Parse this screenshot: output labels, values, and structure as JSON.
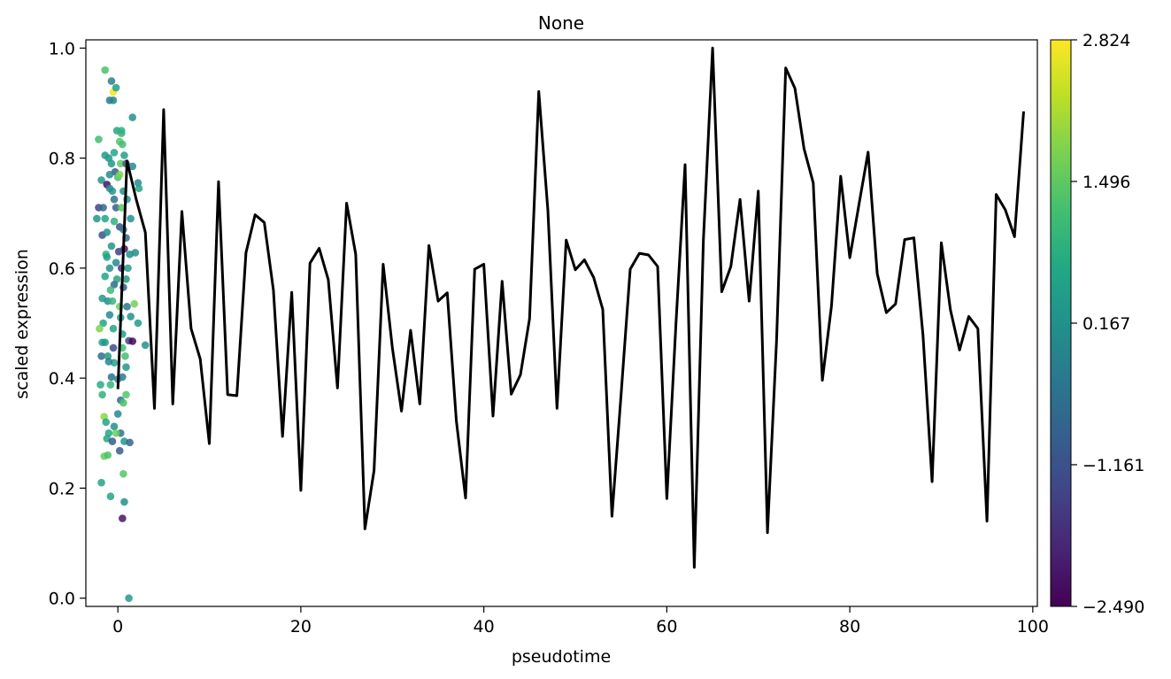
{
  "chart_data": {
    "type": "scatter",
    "title": "None",
    "xlabel": "pseudotime",
    "ylabel": "scaled expression",
    "xlim": [
      -3.5,
      100.5
    ],
    "ylim": [
      -0.015,
      1.015
    ],
    "xticks": [
      0,
      20,
      40,
      60,
      80,
      100
    ],
    "yticks": [
      0.0,
      0.2,
      0.4,
      0.6,
      0.8,
      1.0
    ],
    "xtick_labels": [
      "0",
      "20",
      "40",
      "60",
      "80",
      "100"
    ],
    "ytick_labels": [
      "0.0",
      "0.2",
      "0.4",
      "0.6",
      "0.8",
      "1.0"
    ],
    "grid": false,
    "colormap": "viridis",
    "colorbar": {
      "min": -2.49,
      "max": 2.824,
      "ticks": [
        2.824,
        1.496,
        0.167,
        -1.161,
        -2.49
      ],
      "tick_labels": [
        "2.824",
        "1.496",
        "0.167",
        "−1.161",
        "−2.490"
      ]
    },
    "series": [
      {
        "type": "line",
        "color": "#000000",
        "x": [
          0,
          1,
          2,
          3,
          4,
          5,
          6,
          7,
          8,
          9,
          10,
          11,
          12,
          13,
          14,
          15,
          16,
          17,
          18,
          19,
          20,
          21,
          22,
          23,
          24,
          25,
          26,
          27,
          28,
          29,
          30,
          31,
          32,
          33,
          34,
          35,
          36,
          37,
          38,
          39,
          40,
          41,
          42,
          43,
          44,
          45,
          46,
          47,
          48,
          49,
          50,
          51,
          52,
          53,
          54,
          55,
          56,
          57,
          58,
          59,
          60,
          61,
          62,
          63,
          64,
          65,
          66,
          67,
          68,
          69,
          70,
          71,
          72,
          73,
          74,
          75,
          76,
          77,
          78,
          79,
          80,
          81,
          82,
          83,
          84,
          85,
          86,
          87,
          88,
          89,
          90,
          91,
          92,
          93,
          94,
          95,
          96,
          97,
          98,
          99
        ],
        "y": [
          0.38,
          0.795,
          0.725,
          0.665,
          0.345,
          0.888,
          0.353,
          0.703,
          0.49,
          0.435,
          0.281,
          0.757,
          0.37,
          0.368,
          0.628,
          0.697,
          0.683,
          0.56,
          0.294,
          0.556,
          0.196,
          0.609,
          0.636,
          0.579,
          0.382,
          0.718,
          0.625,
          0.126,
          0.232,
          0.607,
          0.455,
          0.34,
          0.487,
          0.353,
          0.641,
          0.54,
          0.555,
          0.322,
          0.182,
          0.598,
          0.607,
          0.331,
          0.576,
          0.371,
          0.406,
          0.508,
          0.921,
          0.705,
          0.345,
          0.651,
          0.597,
          0.615,
          0.583,
          0.525,
          0.149,
          0.37,
          0.598,
          0.627,
          0.624,
          0.603,
          0.181,
          0.499,
          0.788,
          0.056,
          0.651,
          1.0,
          0.557,
          0.603,
          0.725,
          0.54,
          0.74,
          0.119,
          0.47,
          0.964,
          0.927,
          0.817,
          0.755,
          0.396,
          0.531,
          0.767,
          0.619,
          0.715,
          0.811,
          0.59,
          0.519,
          0.535,
          0.652,
          0.655,
          0.478,
          0.212,
          0.646,
          0.524,
          0.451,
          0.512,
          0.49,
          0.14,
          0.734,
          0.706,
          0.657,
          0.885
        ]
      },
      {
        "type": "scatter",
        "points": [
          [
            -1.4,
            0.96,
            1.3
          ],
          [
            -0.5,
            0.92,
            2.7
          ],
          [
            -0.2,
            0.928,
            0.5
          ],
          [
            -0.7,
            0.94,
            -0.2
          ],
          [
            -0.9,
            0.905,
            -0.3
          ],
          [
            -0.5,
            0.905,
            -0.1
          ],
          [
            1.6,
            0.874,
            0.2
          ],
          [
            -2.1,
            0.834,
            1.2
          ],
          [
            -0.1,
            0.85,
            0.6
          ],
          [
            0.4,
            0.845,
            1.0
          ],
          [
            0.2,
            0.83,
            1.4
          ],
          [
            0.5,
            0.825,
            1.2
          ],
          [
            -0.4,
            0.81,
            0.6
          ],
          [
            -1.0,
            0.8,
            0.3
          ],
          [
            -0.7,
            0.79,
            0.4
          ],
          [
            -1.4,
            0.805,
            0.4
          ],
          [
            0.7,
            0.805,
            0.5
          ],
          [
            0.3,
            0.79,
            1.5
          ],
          [
            -0.3,
            0.775,
            -1.0
          ],
          [
            1.6,
            0.785,
            0.0
          ],
          [
            2.2,
            0.755,
            0.1
          ],
          [
            -1.8,
            0.76,
            0.3
          ],
          [
            -0.9,
            0.77,
            0.0
          ],
          [
            0.0,
            0.765,
            1.2
          ],
          [
            -1.2,
            0.752,
            -2.3
          ],
          [
            2.3,
            0.745,
            0.6
          ],
          [
            -0.6,
            0.74,
            0.3
          ],
          [
            -0.9,
            0.745,
            0.0
          ],
          [
            0.6,
            0.74,
            0.2
          ],
          [
            1.0,
            0.725,
            0.4
          ],
          [
            -0.4,
            0.725,
            -0.5
          ],
          [
            -2.1,
            0.71,
            -1.4
          ],
          [
            -1.6,
            0.71,
            -0.7
          ],
          [
            -0.2,
            0.71,
            -0.9
          ],
          [
            0.4,
            0.71,
            1.5
          ],
          [
            1.4,
            0.69,
            0.2
          ],
          [
            -2.3,
            0.69,
            0.3
          ],
          [
            -1.4,
            0.69,
            0.6
          ],
          [
            -0.4,
            0.685,
            0.9
          ],
          [
            0.2,
            0.675,
            -1.2
          ],
          [
            0.6,
            0.67,
            -0.3
          ],
          [
            -1.7,
            0.66,
            -1.2
          ],
          [
            -1.2,
            0.665,
            0.2
          ],
          [
            0.9,
            0.655,
            -0.7
          ],
          [
            -0.7,
            0.64,
            0.3
          ],
          [
            0.7,
            0.635,
            -2.2
          ],
          [
            -1.3,
            0.625,
            0.9
          ],
          [
            1.3,
            0.625,
            0.1
          ],
          [
            1.9,
            0.628,
            0.1
          ],
          [
            -1.2,
            0.62,
            0.5
          ],
          [
            -0.2,
            0.61,
            0.0
          ],
          [
            -0.9,
            0.6,
            0.2
          ],
          [
            0.4,
            0.6,
            -1.8
          ],
          [
            -1.4,
            0.585,
            0.6
          ],
          [
            -0.1,
            0.58,
            0.6
          ],
          [
            0.9,
            0.58,
            0.4
          ],
          [
            -0.4,
            0.57,
            -0.6
          ],
          [
            0.6,
            0.565,
            -1.0
          ],
          [
            -1.7,
            0.545,
            0.4
          ],
          [
            -1.1,
            0.54,
            0.0
          ],
          [
            -0.6,
            0.54,
            1.0
          ],
          [
            1.0,
            0.53,
            -0.4
          ],
          [
            0.2,
            0.53,
            1.6
          ],
          [
            1.8,
            0.535,
            1.7
          ],
          [
            -0.9,
            0.515,
            0.0
          ],
          [
            0.3,
            0.51,
            0.3
          ],
          [
            1.4,
            0.512,
            0.2
          ],
          [
            -1.6,
            0.5,
            0.6
          ],
          [
            2.2,
            0.5,
            0.4
          ],
          [
            -2.0,
            0.49,
            1.8
          ],
          [
            -0.5,
            0.49,
            0.6
          ],
          [
            0.5,
            0.48,
            0.5
          ],
          [
            1.2,
            0.468,
            -1.3
          ],
          [
            1.6,
            0.467,
            -2.4
          ],
          [
            -1.7,
            0.465,
            0.5
          ],
          [
            -1.4,
            0.465,
            0.3
          ],
          [
            3.0,
            0.46,
            0.2
          ],
          [
            -0.5,
            0.455,
            -1.2
          ],
          [
            0.5,
            0.455,
            1.2
          ],
          [
            -1.8,
            0.44,
            -0.6
          ],
          [
            -1.1,
            0.44,
            0.3
          ],
          [
            0.8,
            0.44,
            1.2
          ],
          [
            -0.4,
            0.428,
            0.6
          ],
          [
            0.9,
            0.42,
            0.3
          ],
          [
            -0.7,
            0.402,
            -0.5
          ],
          [
            0.0,
            0.398,
            0.0
          ],
          [
            0.5,
            0.402,
            -0.3
          ],
          [
            -1.9,
            0.388,
            0.8
          ],
          [
            -0.8,
            0.388,
            1.0
          ],
          [
            0.9,
            0.37,
            1.4
          ],
          [
            -1.7,
            0.37,
            0.9
          ],
          [
            0.3,
            0.36,
            -0.5
          ],
          [
            0.6,
            0.355,
            1.3
          ],
          [
            -1.5,
            0.33,
            1.9
          ],
          [
            0.0,
            0.335,
            0.0
          ],
          [
            -1.3,
            0.32,
            0.6
          ],
          [
            -0.4,
            0.312,
            0.2
          ],
          [
            -1.0,
            0.3,
            0.6
          ],
          [
            0.3,
            0.3,
            -0.5
          ],
          [
            -1.2,
            0.29,
            0.6
          ],
          [
            -0.6,
            0.285,
            -1.0
          ],
          [
            0.7,
            0.285,
            0.3
          ],
          [
            1.3,
            0.283,
            -0.8
          ],
          [
            -1.5,
            0.258,
            1.6
          ],
          [
            -1.1,
            0.26,
            1.3
          ],
          [
            0.2,
            0.268,
            -1.0
          ],
          [
            0.6,
            0.226,
            1.4
          ],
          [
            -1.8,
            0.21,
            0.6
          ],
          [
            -0.8,
            0.185,
            0.6
          ],
          [
            0.7,
            0.175,
            0.2
          ],
          [
            0.5,
            0.145,
            -2.2
          ],
          [
            1.2,
            0.0,
            0.4
          ],
          [
            -0.2,
            0.3,
            1.6
          ],
          [
            0.2,
            0.77,
            1.8
          ],
          [
            0.9,
            0.79,
            -1.1
          ],
          [
            -0.8,
            0.56,
            1.1
          ],
          [
            0.1,
            0.63,
            -1.5
          ],
          [
            1.1,
            0.6,
            0.5
          ],
          [
            -1.0,
            0.43,
            -0.1
          ],
          [
            0.4,
            0.85,
            0.9
          ]
        ]
      }
    ]
  }
}
